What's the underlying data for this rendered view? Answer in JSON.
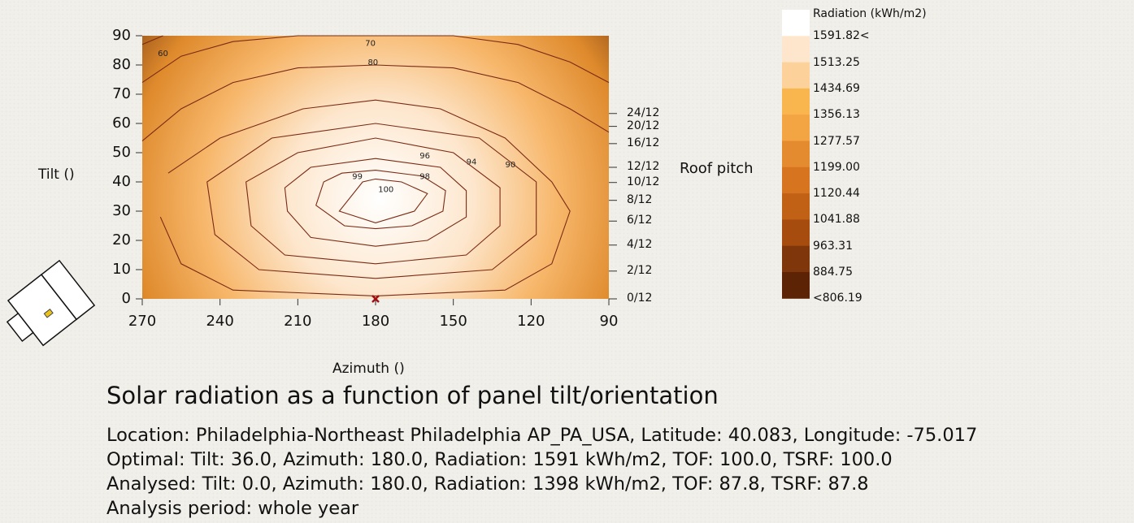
{
  "chart_data": {
    "type": "heatmap",
    "title": "Solar radiation as a function of panel tilt/orientation",
    "xlabel": "Azimuth ()",
    "ylabel": "Tilt ()",
    "right_axis_label": "Roof pitch",
    "xlim": [
      270,
      90
    ],
    "ylim": [
      0,
      90
    ],
    "x_ticks": [
      "270",
      "240",
      "210",
      "180",
      "150",
      "120",
      "90"
    ],
    "y_ticks": [
      "0",
      "10",
      "20",
      "30",
      "40",
      "50",
      "60",
      "70",
      "80",
      "90"
    ],
    "right_ticks": [
      {
        "label": "0/12",
        "tilt": 0
      },
      {
        "label": "2/12",
        "tilt": 9.5
      },
      {
        "label": "4/12",
        "tilt": 18.4
      },
      {
        "label": "6/12",
        "tilt": 26.6
      },
      {
        "label": "8/12",
        "tilt": 33.7
      },
      {
        "label": "10/12",
        "tilt": 39.8
      },
      {
        "label": "12/12",
        "tilt": 45
      },
      {
        "label": "16/12",
        "tilt": 53.1
      },
      {
        "label": "20/12",
        "tilt": 59
      },
      {
        "label": "24/12",
        "tilt": 63.4
      }
    ],
    "contours": [
      {
        "level": 100,
        "label": "100",
        "points": [
          [
            185,
            40
          ],
          [
            194,
            30
          ],
          [
            180,
            26
          ],
          [
            165,
            30
          ],
          [
            160,
            36
          ],
          [
            170,
            40
          ],
          [
            180,
            41
          ]
        ]
      },
      {
        "level": 99,
        "label": "99",
        "points": [
          [
            200,
            40
          ],
          [
            203,
            32
          ],
          [
            192,
            25
          ],
          [
            180,
            24
          ],
          [
            166,
            25
          ],
          [
            154,
            30
          ],
          [
            153,
            37
          ],
          [
            162,
            42
          ],
          [
            180,
            44
          ],
          [
            193,
            43
          ]
        ]
      },
      {
        "level": 98,
        "label": "98",
        "points": [
          [
            215,
            38
          ],
          [
            214,
            30
          ],
          [
            205,
            21
          ],
          [
            180,
            18
          ],
          [
            160,
            20
          ],
          [
            145,
            28
          ],
          [
            145,
            37
          ],
          [
            155,
            45
          ],
          [
            180,
            48
          ],
          [
            205,
            45
          ]
        ]
      },
      {
        "level": 96,
        "label": "96",
        "points": [
          [
            230,
            40
          ],
          [
            228,
            25
          ],
          [
            215,
            15
          ],
          [
            180,
            12
          ],
          [
            145,
            15
          ],
          [
            132,
            25
          ],
          [
            132,
            38
          ],
          [
            150,
            50
          ],
          [
            180,
            55
          ],
          [
            210,
            50
          ]
        ]
      },
      {
        "level": 94,
        "label": "94",
        "points": [
          [
            245,
            40
          ],
          [
            242,
            22
          ],
          [
            225,
            10
          ],
          [
            180,
            7
          ],
          [
            135,
            10
          ],
          [
            118,
            22
          ],
          [
            118,
            40
          ],
          [
            140,
            55
          ],
          [
            180,
            60
          ],
          [
            220,
            55
          ]
        ]
      },
      {
        "level": 90,
        "label": "90",
        "points": [
          [
            263,
            28
          ],
          [
            255,
            12
          ],
          [
            235,
            3
          ],
          [
            180,
            1
          ],
          [
            130,
            3
          ],
          [
            112,
            12
          ],
          [
            105,
            30
          ],
          [
            112,
            40
          ],
          [
            130,
            55
          ],
          [
            155,
            65
          ],
          [
            180,
            68
          ],
          [
            208,
            65
          ],
          [
            240,
            55
          ],
          [
            260,
            43
          ]
        ]
      },
      {
        "level": 80,
        "label": "80",
        "points": [
          [
            270,
            54
          ],
          [
            255,
            65
          ],
          [
            235,
            74
          ],
          [
            210,
            79
          ],
          [
            180,
            80
          ],
          [
            150,
            79
          ],
          [
            125,
            74
          ],
          [
            105,
            65
          ],
          [
            90,
            57
          ]
        ]
      },
      {
        "level": 70,
        "label": "70",
        "points": [
          [
            270,
            74
          ],
          [
            255,
            83
          ],
          [
            235,
            88
          ],
          [
            210,
            90
          ],
          [
            180,
            90
          ],
          [
            150,
            90
          ],
          [
            125,
            87
          ],
          [
            105,
            81
          ],
          [
            90,
            74
          ]
        ]
      },
      {
        "level": 60,
        "label": "60",
        "points": [
          [
            270,
            87
          ],
          [
            262,
            90
          ]
        ]
      }
    ],
    "contour_label_positions": [
      {
        "label": "100",
        "x": 176,
        "y": 36.5
      },
      {
        "label": "99",
        "x": 187,
        "y": 41
      },
      {
        "label": "98",
        "x": 161,
        "y": 41
      },
      {
        "label": "96",
        "x": 161,
        "y": 48
      },
      {
        "label": "94",
        "x": 143,
        "y": 46
      },
      {
        "label": "90",
        "x": 128,
        "y": 45
      },
      {
        "label": "80",
        "x": 181,
        "y": 80
      },
      {
        "label": "70",
        "x": 182,
        "y": 86.5
      },
      {
        "label": "60",
        "x": 262,
        "y": 83
      }
    ],
    "analysed_point": {
      "azimuth": 180,
      "tilt": 0
    },
    "optimal_point": {
      "azimuth": 180,
      "tilt": 36
    },
    "legend": {
      "title": "Radiation (kWh/m2)",
      "entries": [
        {
          "label": "1591.82<",
          "color": "#ffffff"
        },
        {
          "label": "1513.25",
          "color": "#fde6cc"
        },
        {
          "label": "1434.69",
          "color": "#fcd29a"
        },
        {
          "label": "1356.13",
          "color": "#f9b54e"
        },
        {
          "label": "1277.57",
          "color": "#f3a443"
        },
        {
          "label": "1199.00",
          "color": "#e58b2f"
        },
        {
          "label": "1120.44",
          "color": "#d6741f"
        },
        {
          "label": "1041.88",
          "color": "#c16116"
        },
        {
          "label": "963.31",
          "color": "#a64c0f"
        },
        {
          "label": "884.75",
          "color": "#7f360a"
        },
        {
          "label": "<806.19",
          "color": "#5c2305"
        }
      ]
    }
  },
  "info": {
    "location": "Location: Philadelphia-Northeast Philadelphia AP_PA_USA, Latitude: 40.083, Longitude: -75.017",
    "optimal": "Optimal: Tilt: 36.0, Azimuth: 180.0, Radiation: 1591 kWh/m2, TOF: 100.0, TSRF: 100.0",
    "analysed": "Analysed: Tilt: 0.0, Azimuth: 180.0, Radiation: 1398 kWh/m2, TOF: 87.8, TSRF: 87.8",
    "period": "Analysis period: whole year"
  }
}
